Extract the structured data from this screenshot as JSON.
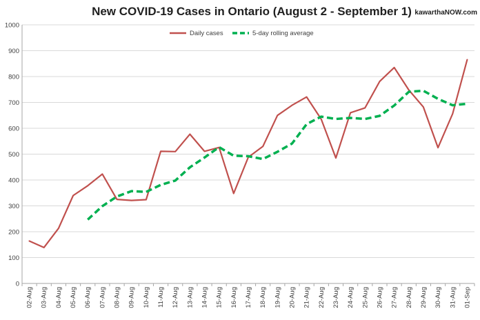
{
  "colors": {
    "daily": "#c0504d",
    "rolling": "#00b050",
    "grid": "#d9d9d9",
    "axis": "#a6a6a6"
  },
  "chart_data": {
    "type": "line",
    "title": "New COVID-19 Cases in Ontario (August 2 - September 1)",
    "brand": "kawarthaNOW.com",
    "xlabel": "",
    "ylabel": "",
    "ylim": [
      0,
      1000
    ],
    "yticks": [
      0,
      100,
      200,
      300,
      400,
      500,
      600,
      700,
      800,
      900,
      1000
    ],
    "grid": true,
    "legend_position": "top-center",
    "categories": [
      "02-Aug",
      "03-Aug",
      "04-Aug",
      "05-Aug",
      "06-Aug",
      "07-Aug",
      "08-Aug",
      "09-Aug",
      "10-Aug",
      "11-Aug",
      "12-Aug",
      "13-Aug",
      "14-Aug",
      "15-Aug",
      "16-Aug",
      "17-Aug",
      "18-Aug",
      "19-Aug",
      "20-Aug",
      "21-Aug",
      "22-Aug",
      "23-Aug",
      "24-Aug",
      "25-Aug",
      "26-Aug",
      "27-Aug",
      "28-Aug",
      "29-Aug",
      "30-Aug",
      "31-Aug",
      "01-Sep"
    ],
    "series": [
      {
        "name": "Daily cases",
        "style": "solid",
        "values": [
          164,
          139,
          213,
          340,
          378,
          423,
          325,
          321,
          324,
          511,
          510,
          577,
          511,
          526,
          348,
          488,
          530,
          650,
          689,
          721,
          635,
          485,
          660,
          679,
          781,
          835,
          748,
          682,
          525,
          656,
          865
        ]
      },
      {
        "name": "5-day rolling average",
        "style": "dashed",
        "values": [
          null,
          null,
          null,
          null,
          247,
          299,
          336,
          357,
          354,
          381,
          398,
          449,
          487,
          527,
          494,
          492,
          481,
          509,
          541,
          616,
          645,
          636,
          640,
          636,
          648,
          688,
          741,
          745,
          714,
          689,
          695
        ]
      }
    ]
  }
}
